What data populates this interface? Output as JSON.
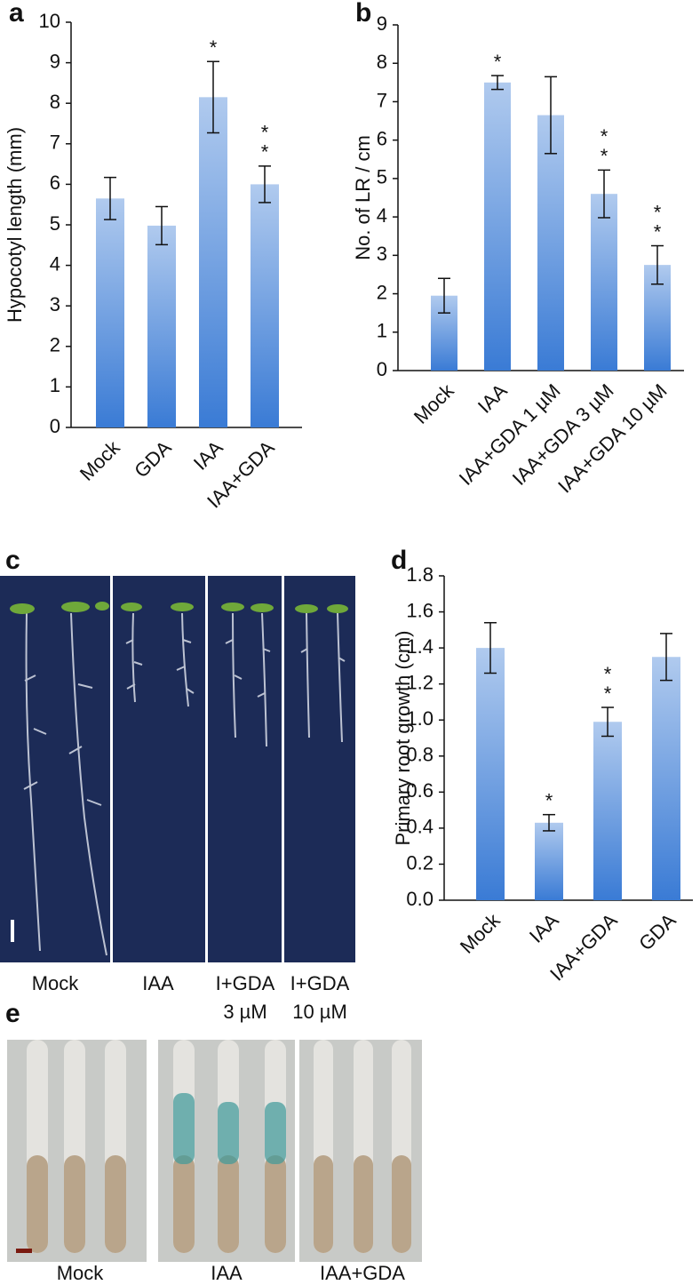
{
  "chart_data": [
    {
      "type": "bar",
      "ylabel": "Hypocotyl length (mm)",
      "categories": [
        "Mock",
        "GDA",
        "IAA",
        "IAA+GDA"
      ],
      "values": [
        5.65,
        4.98,
        8.15,
        6.0
      ],
      "errors": [
        0.52,
        0.47,
        0.88,
        0.45
      ],
      "significance": [
        null,
        null,
        [
          "*"
        ],
        [
          "*",
          "*"
        ]
      ],
      "ylim": [
        0,
        10
      ],
      "yticks": [
        0,
        1,
        2,
        3,
        4,
        5,
        6,
        7,
        8,
        9,
        10
      ],
      "color": "#3a7bd5"
    },
    {
      "type": "bar",
      "ylabel": "No. of LR / cm",
      "categories": [
        "Mock",
        "IAA",
        "IAA+GDA 1 µM",
        "IAA+GDA 3 µM",
        "IAA+GDA 10 µM"
      ],
      "values": [
        1.95,
        7.5,
        6.65,
        4.6,
        2.75
      ],
      "errors": [
        0.45,
        0.18,
        1.0,
        0.62,
        0.5
      ],
      "significance": [
        null,
        [
          "*"
        ],
        null,
        [
          "*",
          "*"
        ],
        [
          "*",
          "*"
        ]
      ],
      "ylim": [
        0,
        9
      ],
      "yticks": [
        0,
        1,
        2,
        3,
        4,
        5,
        6,
        7,
        8,
        9
      ],
      "color": "#3a7bd5"
    },
    {
      "type": "bar",
      "ylabel": "Primary root growth (cm)",
      "categories": [
        "Mock",
        "IAA",
        "IAA+GDA",
        "GDA"
      ],
      "values": [
        1.4,
        0.43,
        0.99,
        1.35
      ],
      "errors": [
        0.14,
        0.045,
        0.08,
        0.13
      ],
      "significance": [
        null,
        [
          "*"
        ],
        [
          "*",
          "*"
        ],
        null
      ],
      "ylim": [
        0,
        1.8
      ],
      "yticks": [
        {
          "value": 0,
          "label": "0.0"
        },
        0.2,
        0.4,
        0.6,
        0.8,
        {
          "value": 1,
          "label": "1.0"
        },
        1.2,
        1.4,
        1.6,
        1.8
      ],
      "color": "#3a7bd5"
    }
  ],
  "panel_labels": [
    "a",
    "b",
    "c",
    "d",
    "e"
  ],
  "panel_c": {
    "captions": [
      [
        "Mock"
      ],
      [
        "IAA"
      ],
      [
        "I+GDA",
        "3 µM"
      ],
      [
        "I+GDA",
        "10 µM"
      ]
    ]
  },
  "panel_e": {
    "captions": [
      "Mock",
      "IAA",
      "IAA+GDA"
    ]
  }
}
